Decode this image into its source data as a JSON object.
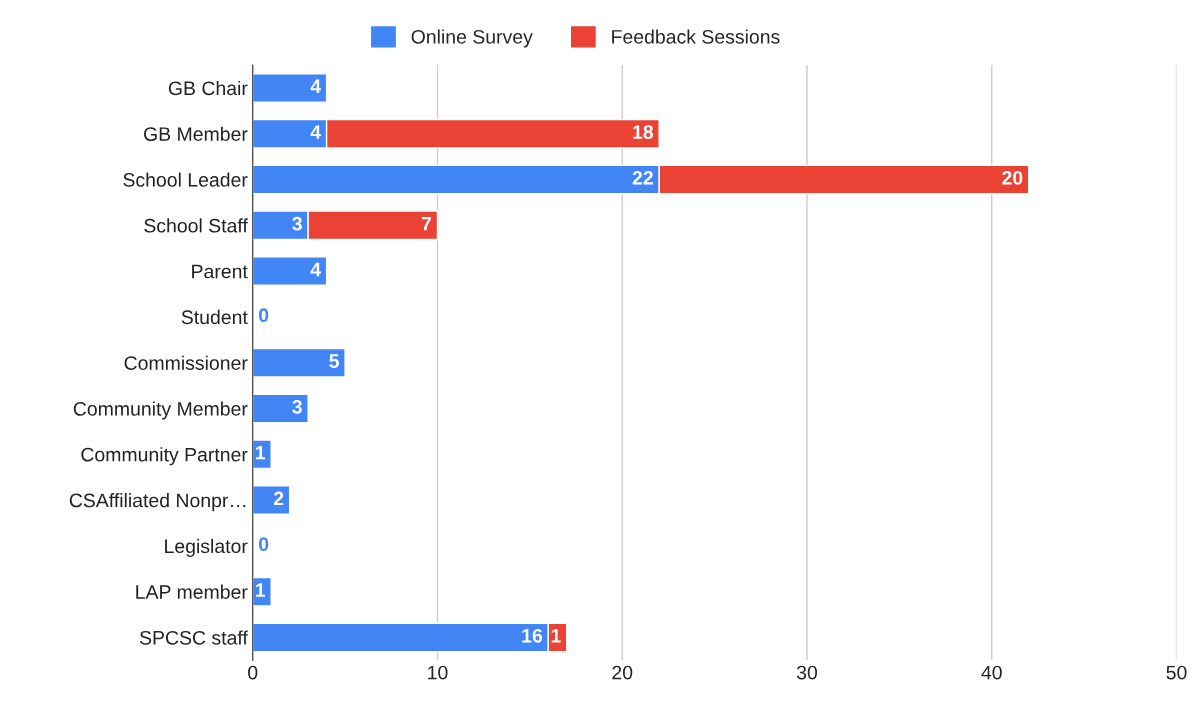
{
  "chart_data": {
    "type": "bar",
    "orientation": "horizontal",
    "stacked": true,
    "categories": [
      "GB Chair",
      "GB Member",
      "School Leader",
      "School Staff",
      "Parent",
      "Student",
      "Commissioner",
      "Community Member",
      "Community Partner",
      "CSAffiliated Nonpr…",
      "Legislator",
      "LAP member",
      "SPCSC staff"
    ],
    "series": [
      {
        "name": "Online Survey",
        "color": "#4285f4",
        "values": [
          4,
          4,
          22,
          3,
          4,
          0,
          5,
          3,
          1,
          2,
          0,
          1,
          16
        ]
      },
      {
        "name": "Feedback Sessions",
        "color": "#ea4335",
        "values": [
          null,
          18,
          20,
          7,
          null,
          null,
          null,
          null,
          null,
          null,
          null,
          null,
          1
        ]
      }
    ],
    "xlim": [
      0,
      50
    ],
    "xticks": [
      0,
      10,
      20,
      30,
      40,
      50
    ],
    "grid": "x",
    "legend": "top",
    "data_labels": true
  }
}
